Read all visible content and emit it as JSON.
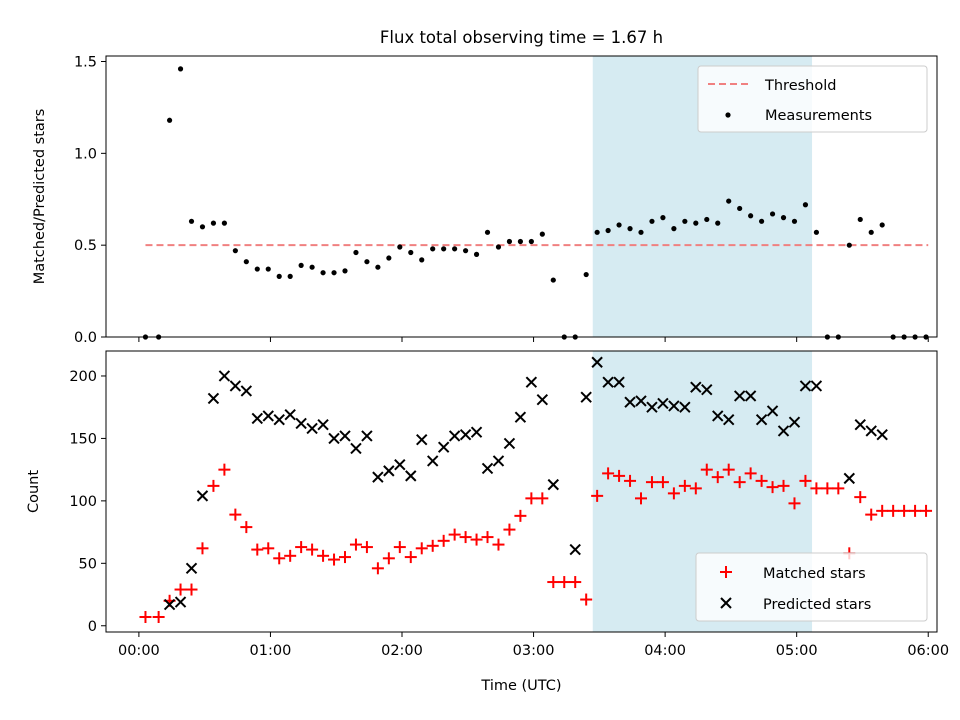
{
  "title": "Flux total observing time = 1.67 h",
  "chart_data": [
    {
      "type": "scatter",
      "ylabel": "Matched/Predicted stars",
      "xlabel": "",
      "x_unit": "minutes since 00:00 UTC",
      "xlim": [
        -15,
        364
      ],
      "ylim": [
        0,
        1.53
      ],
      "yticks": [
        0.0,
        0.5,
        1.0,
        1.5
      ],
      "ytick_labels": [
        "0.0",
        "0.5",
        "1.0",
        "1.5"
      ],
      "shaded_span": [
        207,
        307
      ],
      "shade_color": "#add8e6",
      "grid": false,
      "legend_position": "top-right",
      "legend": [
        "Threshold",
        "Measurements"
      ],
      "threshold": {
        "name": "Threshold",
        "value": 0.5,
        "x_range": [
          3,
          360
        ],
        "color": "#f08080"
      },
      "series": [
        {
          "name": "Measurements",
          "color": "#000000",
          "x": [
            3,
            9,
            14,
            19,
            24,
            29,
            34,
            39,
            44,
            49,
            54,
            59,
            64,
            69,
            74,
            79,
            84,
            89,
            94,
            99,
            104,
            109,
            114,
            119,
            124,
            129,
            134,
            139,
            144,
            149,
            154,
            159,
            164,
            169,
            174,
            179,
            184,
            189,
            194,
            199,
            204,
            209,
            214,
            219,
            224,
            229,
            234,
            239,
            244,
            249,
            254,
            259,
            264,
            269,
            274,
            279,
            284,
            289,
            294,
            299,
            304,
            309,
            314,
            319,
            324,
            329,
            334,
            339,
            344,
            349,
            354,
            359
          ],
          "y": [
            0.0,
            0.0,
            1.18,
            1.46,
            0.63,
            0.6,
            0.62,
            0.62,
            0.47,
            0.41,
            0.37,
            0.37,
            0.33,
            0.33,
            0.39,
            0.38,
            0.35,
            0.35,
            0.36,
            0.46,
            0.41,
            0.38,
            0.43,
            0.49,
            0.46,
            0.42,
            0.48,
            0.48,
            0.48,
            0.47,
            0.45,
            0.57,
            0.49,
            0.52,
            0.52,
            0.52,
            0.56,
            0.31,
            0.0,
            0.0,
            0.34,
            0.57,
            0.58,
            0.61,
            0.59,
            0.57,
            0.63,
            0.65,
            0.59,
            0.63,
            0.62,
            0.64,
            0.62,
            0.74,
            0.7,
            0.66,
            0.63,
            0.67,
            0.65,
            0.63,
            0.72,
            0.57,
            0.0,
            0.0,
            0.5,
            0.64,
            0.57,
            0.61,
            0.0,
            0.0,
            0.0,
            0.0
          ]
        }
      ]
    },
    {
      "type": "scatter",
      "ylabel": "Count",
      "xlabel": "Time (UTC)",
      "x_unit": "minutes since 00:00 UTC",
      "xlim": [
        -15,
        364
      ],
      "ylim": [
        -5,
        220
      ],
      "yticks": [
        0,
        50,
        100,
        150,
        200
      ],
      "ytick_labels": [
        "0",
        "50",
        "100",
        "150",
        "200"
      ],
      "xticks": [
        0,
        60,
        120,
        180,
        240,
        300,
        360
      ],
      "xtick_labels": [
        "00:00",
        "01:00",
        "02:00",
        "03:00",
        "04:00",
        "05:00",
        "06:00"
      ],
      "shaded_span": [
        207,
        307
      ],
      "shade_color": "#add8e6",
      "grid": false,
      "legend_position": "bottom-right",
      "legend": [
        "Matched stars",
        "Predicted stars"
      ],
      "series": [
        {
          "name": "Matched stars",
          "marker": "plus",
          "color": "#ff0000",
          "x": [
            3,
            9,
            14,
            19,
            24,
            29,
            34,
            39,
            44,
            49,
            54,
            59,
            64,
            69,
            74,
            79,
            84,
            89,
            94,
            99,
            104,
            109,
            114,
            119,
            124,
            129,
            134,
            139,
            144,
            149,
            154,
            159,
            164,
            169,
            174,
            179,
            184,
            189,
            194,
            199,
            204,
            209,
            214,
            219,
            224,
            229,
            234,
            239,
            244,
            249,
            254,
            259,
            264,
            269,
            274,
            279,
            284,
            289,
            294,
            299,
            304,
            309,
            314,
            319,
            324,
            329,
            334,
            339,
            344,
            349,
            354,
            359
          ],
          "y": [
            7,
            7,
            20,
            29,
            29,
            62,
            112,
            125,
            89,
            79,
            61,
            62,
            54,
            56,
            63,
            61,
            56,
            53,
            55,
            65,
            63,
            46,
            54,
            63,
            55,
            62,
            64,
            68,
            73,
            71,
            69,
            71,
            65,
            77,
            88,
            102,
            102,
            35,
            35,
            35,
            21,
            104,
            122,
            120,
            116,
            102,
            115,
            115,
            106,
            112,
            110,
            125,
            119,
            125,
            115,
            122,
            116,
            111,
            112,
            98,
            116,
            110,
            110,
            110,
            58,
            103,
            89,
            92,
            92,
            92,
            92,
            92
          ]
        },
        {
          "name": "Predicted stars",
          "marker": "x",
          "color": "#000000",
          "x": [
            14,
            19,
            24,
            29,
            34,
            39,
            44,
            49,
            54,
            59,
            64,
            69,
            74,
            79,
            84,
            89,
            94,
            99,
            104,
            109,
            114,
            119,
            124,
            129,
            134,
            139,
            144,
            149,
            154,
            159,
            164,
            169,
            174,
            179,
            184,
            189,
            199,
            204,
            209,
            214,
            219,
            224,
            229,
            234,
            239,
            244,
            249,
            254,
            259,
            264,
            269,
            274,
            279,
            284,
            289,
            294,
            299,
            304,
            309,
            324,
            329,
            334,
            339
          ],
          "y": [
            17,
            19,
            46,
            104,
            182,
            200,
            192,
            188,
            166,
            168,
            165,
            169,
            162,
            158,
            161,
            150,
            152,
            142,
            152,
            119,
            124,
            129,
            120,
            149,
            132,
            143,
            152,
            153,
            155,
            126,
            132,
            146,
            167,
            195,
            181,
            113,
            61,
            183,
            211,
            195,
            195,
            179,
            180,
            175,
            178,
            176,
            175,
            191,
            189,
            168,
            165,
            184,
            184,
            165,
            172,
            156,
            163,
            192,
            192,
            118,
            161,
            156,
            153
          ]
        }
      ]
    }
  ]
}
